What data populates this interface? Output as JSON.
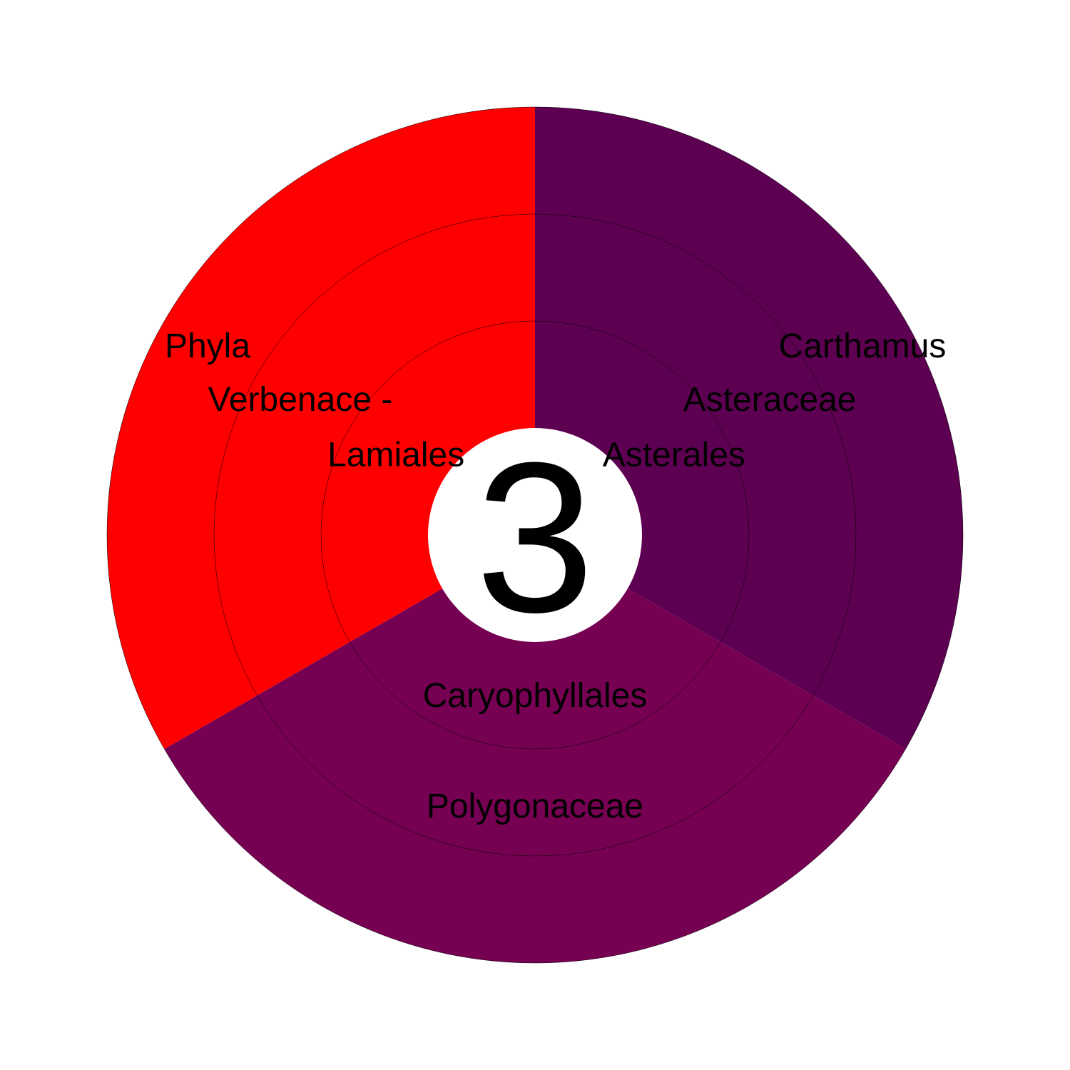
{
  "chart_data": {
    "type": "pie",
    "chart_style": "sunburst",
    "center_label": "3",
    "levels": [
      "order",
      "family",
      "genus"
    ],
    "segments": [
      {
        "value": 1,
        "color": "#5E0052",
        "labels": {
          "order": "Asterales",
          "family": "Asteraceae",
          "genus": "Carthamus"
        }
      },
      {
        "value": 1,
        "color": "#760052",
        "labels": {
          "order": "Caryophyllales",
          "family": "Polygonaceae",
          "genus": ""
        }
      },
      {
        "value": 1,
        "color": "#FF0000",
        "labels": {
          "order": "Lamiales",
          "family": "Verbenace -",
          "genus": "Phyla"
        }
      }
    ]
  }
}
